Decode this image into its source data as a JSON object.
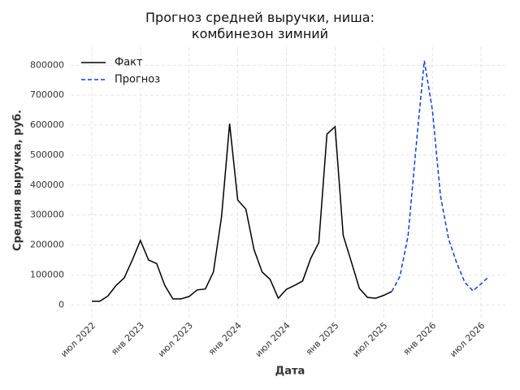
{
  "chart_data": {
    "type": "line",
    "title": "Прогноз средней выручки, ниша:\nкомбинезон зимний",
    "x_label": "Дата",
    "y_label": "Средняя выручка, руб.",
    "series": [
      {
        "name": "Факт",
        "color": "#000000",
        "dash": "solid",
        "x": [
          "2022-07",
          "2022-08",
          "2022-09",
          "2022-10",
          "2022-11",
          "2022-12",
          "2023-01",
          "2023-02",
          "2023-03",
          "2023-04",
          "2023-05",
          "2023-06",
          "2023-07",
          "2023-08",
          "2023-09",
          "2023-10",
          "2023-11",
          "2023-12",
          "2024-01",
          "2024-02",
          "2024-03",
          "2024-04",
          "2024-05",
          "2024-06",
          "2024-07",
          "2024-08",
          "2024-09",
          "2024-10",
          "2024-11",
          "2024-12",
          "2025-01",
          "2025-02",
          "2025-03",
          "2025-04",
          "2025-05",
          "2025-06",
          "2025-07",
          "2025-08"
        ],
        "values": [
          12000,
          12000,
          30000,
          65000,
          90000,
          150000,
          215000,
          150000,
          138000,
          65000,
          20000,
          20000,
          28000,
          50000,
          53000,
          110000,
          295000,
          605000,
          350000,
          320000,
          185000,
          110000,
          85000,
          22000,
          52000,
          65000,
          80000,
          155000,
          208000,
          570000,
          595000,
          232000,
          145000,
          55000,
          25000,
          22000,
          32000,
          45000
        ]
      },
      {
        "name": "Прогноз",
        "color": "#0b3fd1",
        "dash": "dashed",
        "x": [
          "2025-08",
          "2025-09",
          "2025-10",
          "2025-11",
          "2025-12",
          "2026-01",
          "2026-02",
          "2026-03",
          "2026-04",
          "2026-05",
          "2026-06",
          "2026-07",
          "2026-08"
        ],
        "values": [
          45000,
          95000,
          230000,
          530000,
          815000,
          650000,
          365000,
          220000,
          140000,
          75000,
          47000,
          70000,
          95000
        ]
      }
    ],
    "xlim": [
      "2022-05",
      "2026-09"
    ],
    "xticks": [
      {
        "value": "2022-07",
        "label": "июл 2022"
      },
      {
        "value": "2023-01",
        "label": "янв 2023"
      },
      {
        "value": "2023-07",
        "label": "июл 2023"
      },
      {
        "value": "2024-01",
        "label": "янв 2024"
      },
      {
        "value": "2024-07",
        "label": "июл 2024"
      },
      {
        "value": "2025-01",
        "label": "янв 2025"
      },
      {
        "value": "2025-07",
        "label": "июл 2025"
      },
      {
        "value": "2026-01",
        "label": "янв 2026"
      },
      {
        "value": "2026-07",
        "label": "июл 2026"
      }
    ],
    "ylim": [
      -40000,
      855000
    ],
    "yticks": [
      0,
      100000,
      200000,
      300000,
      400000,
      500000,
      600000,
      700000,
      800000
    ],
    "grid": true,
    "legend": "upper-left"
  }
}
